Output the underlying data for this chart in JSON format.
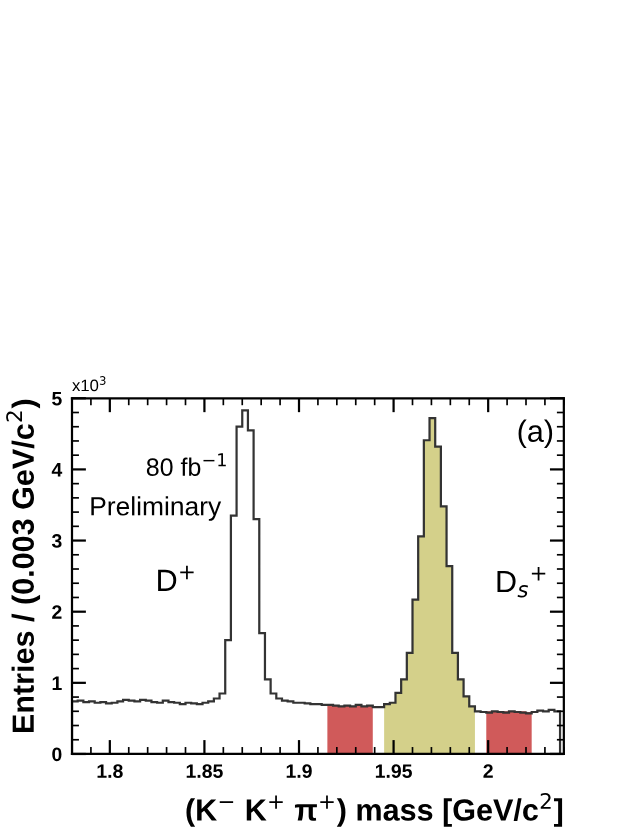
{
  "chart_data": {
    "type": "histogram",
    "xlabel": "(K$^{−}$ K$^{+}$ π$^{+}$) mass [GeV/c$^{2}$]",
    "ylabel": "Entries / (0.003 GeV/c$^{2}$)",
    "annotations": [
      "x10$^{3}$",
      "80 fb$^{−1}$",
      "Preliminary",
      "D$^{+}$",
      "D$_{s}$$^{+}$",
      "(a)"
    ],
    "bins": [
      1.78,
      1.783,
      1.786,
      1.789,
      1.792,
      1.795,
      1.798,
      1.801,
      1.804,
      1.807,
      1.81,
      1.813,
      1.816,
      1.819,
      1.822,
      1.825,
      1.828,
      1.831,
      1.834,
      1.837,
      1.84,
      1.843,
      1.846,
      1.849,
      1.852,
      1.855,
      1.858,
      1.861,
      1.864,
      1.867,
      1.87,
      1.873,
      1.876,
      1.879,
      1.882,
      1.885,
      1.888,
      1.891,
      1.894,
      1.897,
      1.9,
      1.903,
      1.906,
      1.909,
      1.912,
      1.915,
      1.918,
      1.921,
      1.924,
      1.927,
      1.93,
      1.933,
      1.936,
      1.939,
      1.942,
      1.945,
      1.948,
      1.951,
      1.954,
      1.957,
      1.96,
      1.963,
      1.966,
      1.969,
      1.972,
      1.975,
      1.978,
      1.981,
      1.984,
      1.987,
      1.99,
      1.993,
      1.996,
      1.999,
      2.002,
      2.005,
      2.008,
      2.011,
      2.014,
      2.017,
      2.02,
      2.023,
      2.026,
      2.029,
      2.032,
      2.035,
      2.038
    ],
    "values": [
      0.74,
      0.75,
      0.73,
      0.74,
      0.72,
      0.73,
      0.71,
      0.72,
      0.74,
      0.76,
      0.75,
      0.74,
      0.76,
      0.75,
      0.73,
      0.72,
      0.75,
      0.73,
      0.72,
      0.7,
      0.72,
      0.71,
      0.7,
      0.72,
      0.74,
      0.78,
      0.85,
      1.6,
      3.35,
      4.6,
      4.83,
      4.55,
      3.3,
      1.7,
      1.05,
      0.85,
      0.78,
      0.75,
      0.74,
      0.72,
      0.72,
      0.71,
      0.7,
      0.7,
      0.69,
      0.69,
      0.68,
      0.67,
      0.68,
      0.67,
      0.69,
      0.67,
      0.68,
      0.66,
      0.66,
      0.7,
      0.72,
      0.86,
      1.05,
      1.42,
      2.17,
      3.06,
      4.41,
      4.72,
      4.32,
      3.48,
      2.64,
      1.42,
      1.05,
      0.81,
      0.67,
      0.6,
      0.59,
      0.58,
      0.6,
      0.59,
      0.58,
      0.6,
      0.59,
      0.58,
      0.57,
      0.59,
      0.61,
      0.6,
      0.62,
      0.6
    ],
    "color": "#333333",
    "series": [
      {
        "color": "#d05a5a",
        "bins": [
          1.915,
          1.918,
          1.921,
          1.924,
          1.927,
          1.93,
          1.933,
          1.936,
          1.939
        ],
        "values": [
          0.69,
          0.68,
          0.67,
          0.68,
          0.67,
          0.69,
          0.67,
          0.68
        ]
      },
      {
        "color": "#d4d08a",
        "bins": [
          1.945,
          1.948,
          1.951,
          1.954,
          1.957,
          1.96,
          1.963,
          1.966,
          1.969,
          1.972,
          1.975,
          1.978,
          1.981,
          1.984,
          1.987,
          1.99,
          1.993
        ],
        "values": [
          0.7,
          0.72,
          0.86,
          1.05,
          1.42,
          2.17,
          3.06,
          4.41,
          4.72,
          4.32,
          3.48,
          2.64,
          1.42,
          1.05,
          0.81,
          0.67
        ]
      },
      {
        "color": "#d05a5a",
        "bins": [
          1.999,
          2.002,
          2.005,
          2.008,
          2.011,
          2.014,
          2.017,
          2.02,
          2.023
        ],
        "values": [
          0.6,
          0.59,
          0.58,
          0.6,
          0.59,
          0.58,
          0.6,
          0.59
        ]
      }
    ],
    "xlim": [
      1.78,
      2.04
    ],
    "xticks": [
      1.8,
      1.85,
      1.9,
      1.95,
      2
    ],
    "ylim": [
      0,
      5
    ],
    "yticks": [
      0,
      1,
      2,
      3,
      4,
      5
    ],
    "grid": false,
    "legend": false
  }
}
